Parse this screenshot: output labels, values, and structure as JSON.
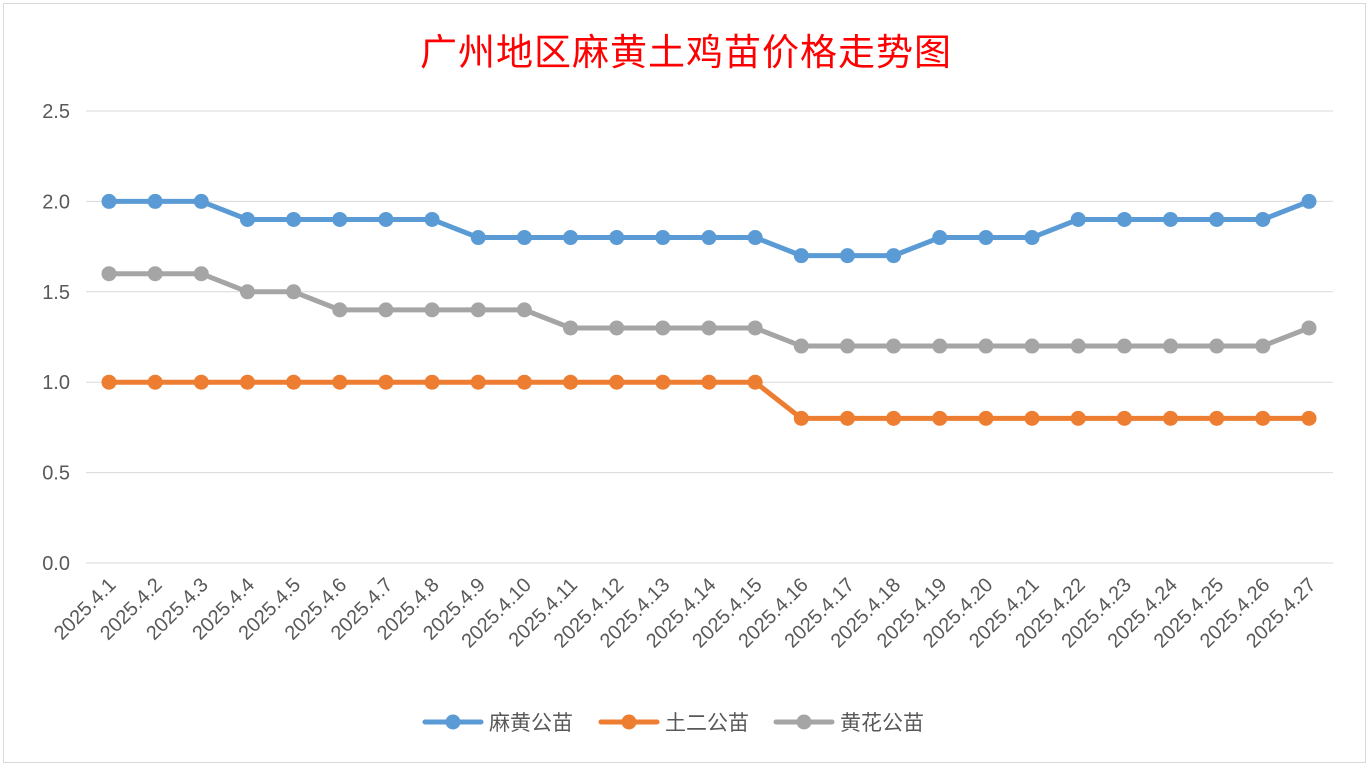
{
  "chart_data": {
    "type": "line",
    "title": "广州地区麻黄土鸡苗价格走势图",
    "xlabel": "",
    "ylabel": "",
    "ylim": [
      0,
      2.5
    ],
    "yticks": [
      "0.0",
      "0.5",
      "1.0",
      "1.5",
      "2.0",
      "2.5"
    ],
    "grid": true,
    "legend_position": "bottom",
    "categories": [
      "2025.4.1",
      "2025.4.2",
      "2025.4.3",
      "2025.4.4",
      "2025.4.5",
      "2025.4.6",
      "2025.4.7",
      "2025.4.8",
      "2025.4.9",
      "2025.4.10",
      "2025.4.11",
      "2025.4.12",
      "2025.4.13",
      "2025.4.14",
      "2025.4.15",
      "2025.4.16",
      "2025.4.17",
      "2025.4.18",
      "2025.4.19",
      "2025.4.20",
      "2025.4.21",
      "2025.4.22",
      "2025.4.23",
      "2025.4.24",
      "2025.4.25",
      "2025.4.26",
      "2025.4.27"
    ],
    "series": [
      {
        "name": "麻黄公苗",
        "color": "#5b9bd5",
        "values": [
          2.0,
          2.0,
          2.0,
          1.9,
          1.9,
          1.9,
          1.9,
          1.9,
          1.8,
          1.8,
          1.8,
          1.8,
          1.8,
          1.8,
          1.8,
          1.7,
          1.7,
          1.7,
          1.8,
          1.8,
          1.8,
          1.9,
          1.9,
          1.9,
          1.9,
          1.9,
          2.0
        ]
      },
      {
        "name": "土二公苗",
        "color": "#ed7d31",
        "values": [
          1.0,
          1.0,
          1.0,
          1.0,
          1.0,
          1.0,
          1.0,
          1.0,
          1.0,
          1.0,
          1.0,
          1.0,
          1.0,
          1.0,
          1.0,
          0.8,
          0.8,
          0.8,
          0.8,
          0.8,
          0.8,
          0.8,
          0.8,
          0.8,
          0.8,
          0.8,
          0.8
        ]
      },
      {
        "name": "黄花公苗",
        "color": "#a5a5a5",
        "values": [
          1.6,
          1.6,
          1.6,
          1.5,
          1.5,
          1.4,
          1.4,
          1.4,
          1.4,
          1.4,
          1.3,
          1.3,
          1.3,
          1.3,
          1.3,
          1.2,
          1.2,
          1.2,
          1.2,
          1.2,
          1.2,
          1.2,
          1.2,
          1.2,
          1.2,
          1.2,
          1.3
        ]
      }
    ]
  }
}
